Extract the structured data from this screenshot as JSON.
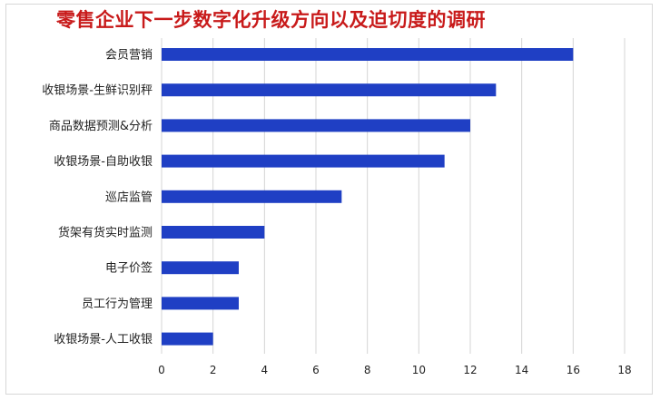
{
  "chart_data": {
    "type": "bar",
    "orientation": "horizontal",
    "title": "零售企业下一步数字化升级方向以及迫切度的调研",
    "categories": [
      "会员营销",
      "收银场景-生鲜识别秤",
      "商品数据预测&分析",
      "收银场景-自助收银",
      "巡店监管",
      "货架有货实时监测",
      "电子价签",
      "员工行为管理",
      "收银场景-人工收银"
    ],
    "values": [
      16,
      13,
      12,
      11,
      7,
      4,
      3,
      3,
      2
    ],
    "xlim": [
      0,
      18
    ],
    "xticks": [
      0,
      2,
      4,
      6,
      8,
      10,
      12,
      14,
      16,
      18
    ],
    "grid": true,
    "legend": "none",
    "bar_color": "#1f3fc4",
    "grid_color": "#d4d4d4",
    "title_color": "#c81a1a"
  }
}
